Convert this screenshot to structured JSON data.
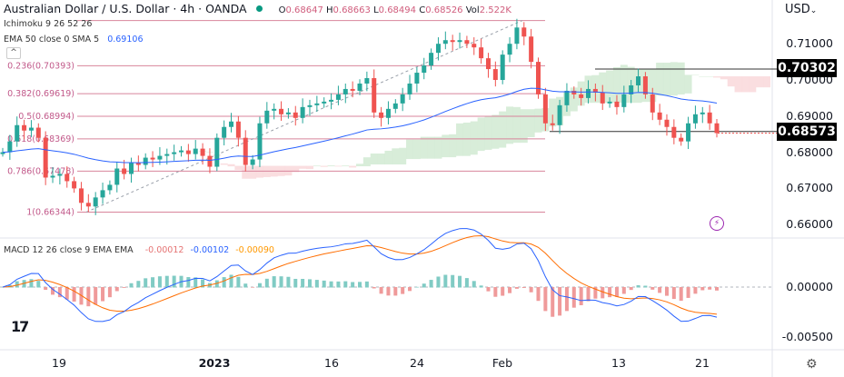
{
  "header": {
    "symbol_title": "Australian Dollar / U.S. Dollar · 4h · OANDA",
    "ohlc": {
      "o_label": "O",
      "o": "0.68647",
      "h_label": "H",
      "h": "0.68663",
      "l_label": "L",
      "l": "0.68494",
      "c_label": "C",
      "c": "0.68526",
      "vol_label": "Vol",
      "vol": "2.522K"
    },
    "ichimoku_label": "Ichimoku 9 26 52 26",
    "ema_label": "EMA 50 close 0 SMA 5",
    "ema_value": "0.69106",
    "collapse_icon": "chevron-up-icon",
    "macd_label": "MACD 12 26 close 9 EMA EMA",
    "macd_values": [
      "-0.00012",
      "-0.00102",
      "-0.00090"
    ]
  },
  "price_axis": {
    "currency": "USD",
    "ticks": [
      "0.71000",
      "0.70000",
      "0.69000",
      "0.68000",
      "0.67000",
      "0.66000"
    ],
    "macd_ticks": [
      "0.00000",
      "-0.00500"
    ]
  },
  "price_tags": [
    "0.70302",
    "0.68573"
  ],
  "time_axis": [
    "19",
    "2023",
    "16",
    "24",
    "Feb",
    "13",
    "21"
  ],
  "fib_labels": [
    "0.236(0.70393)",
    "0.382(0.69619)",
    "0.5(0.68994)",
    "0.618(0.68369)",
    "0.786(0.67478)",
    "1(0.66344)"
  ],
  "colors": {
    "up": "#26a69a",
    "down": "#ef5350",
    "ema": "#2962ff",
    "macd": "#2962ff",
    "signal": "#ff6d00",
    "fib": "#d8849c",
    "cloud_bear": "#f8d0d3",
    "cloud_bull": "#c8e6c9"
  },
  "icons": {
    "logo": "tradingview-logo",
    "settings": "gear-icon",
    "alert": "lightning-icon"
  },
  "chart_data": {
    "type": "candlestick",
    "title": "Australian Dollar / U.S. Dollar · 4h · OANDA",
    "ylim": [
      0.657,
      0.7175
    ],
    "macd_ylim": [
      -0.0063,
      0.0045
    ],
    "closes": [
      0.68,
      0.683,
      0.6875,
      0.686,
      0.6868,
      0.684,
      0.673,
      0.6735,
      0.674,
      0.672,
      0.67,
      0.666,
      0.665,
      0.6675,
      0.6695,
      0.671,
      0.6755,
      0.674,
      0.677,
      0.6765,
      0.6785,
      0.678,
      0.679,
      0.6795,
      0.68,
      0.6805,
      0.6795,
      0.681,
      0.679,
      0.676,
      0.684,
      0.687,
      0.6885,
      0.684,
      0.6765,
      0.678,
      0.688,
      0.6915,
      0.692,
      0.6905,
      0.691,
      0.6895,
      0.6925,
      0.693,
      0.6935,
      0.694,
      0.6945,
      0.696,
      0.6975,
      0.697,
      0.699,
      0.7005,
      0.691,
      0.6895,
      0.692,
      0.6935,
      0.696,
      0.699,
      0.702,
      0.704,
      0.7075,
      0.71,
      0.711,
      0.7105,
      0.711,
      0.71,
      0.709,
      0.706,
      0.703,
      0.7,
      0.707,
      0.71,
      0.7145,
      0.712,
      0.705,
      0.696,
      0.688,
      0.6875,
      0.693,
      0.697,
      0.696,
      0.695,
      0.6975,
      0.6965,
      0.6935,
      0.694,
      0.6925,
      0.696,
      0.6985,
      0.701,
      0.696,
      0.691,
      0.689,
      0.687,
      0.684,
      0.683,
      0.688,
      0.6905,
      0.691,
      0.688,
      0.6853
    ],
    "fibonacci": [
      {
        "level": 0,
        "price": 0.71644
      },
      {
        "level": 0.236,
        "price": 0.70393
      },
      {
        "level": 0.382,
        "price": 0.69619
      },
      {
        "level": 0.5,
        "price": 0.68994
      },
      {
        "level": 0.618,
        "price": 0.68369
      },
      {
        "level": 0.786,
        "price": 0.67478
      },
      {
        "level": 1,
        "price": 0.66344
      }
    ],
    "horizontal_levels": [
      0.70302,
      0.68573
    ],
    "indicators": [
      "Ichimoku 9 26 52 26",
      "EMA 50",
      "MACD 12 26 9"
    ]
  }
}
